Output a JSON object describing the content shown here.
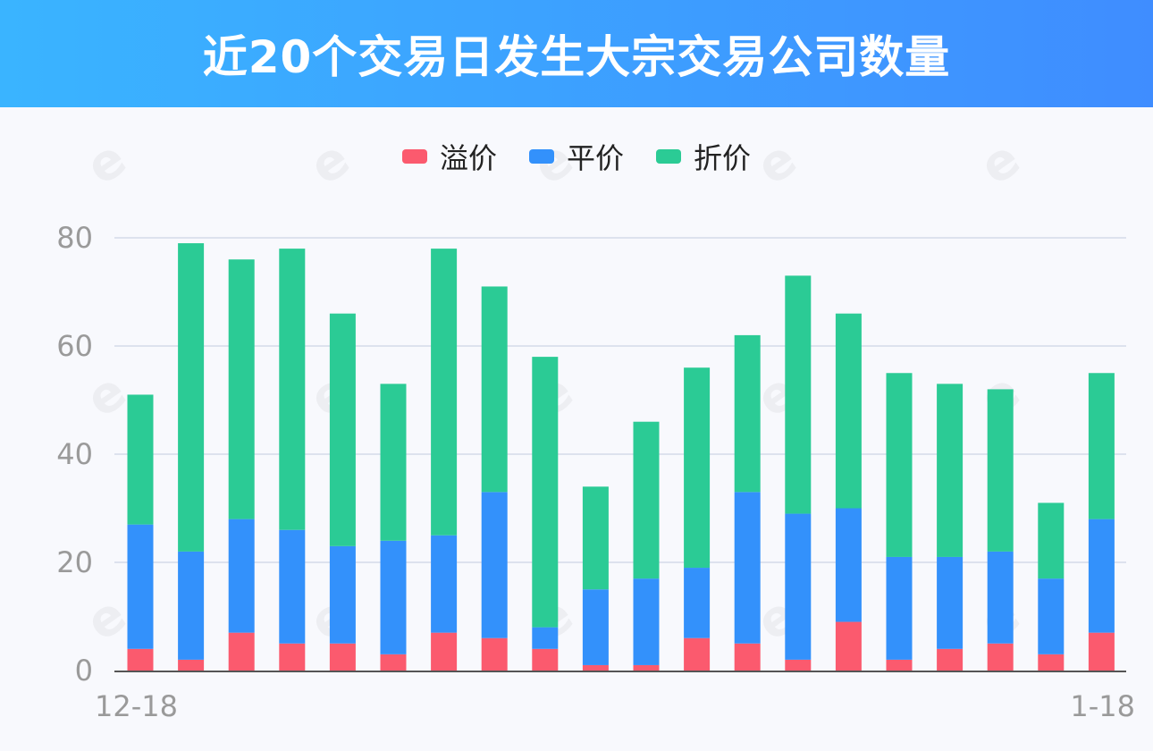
{
  "header": {
    "title": "近20个交易日发生大宗交易公司数量"
  },
  "colors": {
    "premium": "#fb5a6e",
    "par": "#3391fb",
    "discount": "#2bcb95",
    "grid": "#dde2ee",
    "axis": "#555555"
  },
  "chart_data": {
    "type": "bar",
    "stacked": true,
    "title": "近20个交易日发生大宗交易公司数量",
    "legend_position": "top-center",
    "grid": true,
    "ylim": [
      0,
      80
    ],
    "y_ticks": [
      "0",
      "20",
      "40",
      "60",
      "80"
    ],
    "x_tick_labels": [
      "12-18",
      "1-18"
    ],
    "series": [
      {
        "name": "溢价",
        "values": [
          4,
          2,
          7,
          5,
          5,
          3,
          7,
          6,
          4,
          1,
          1,
          6,
          5,
          2,
          9,
          2,
          4,
          5,
          3,
          7
        ]
      },
      {
        "name": "平价",
        "values": [
          23,
          20,
          21,
          21,
          18,
          21,
          18,
          27,
          4,
          14,
          16,
          13,
          28,
          27,
          21,
          19,
          17,
          17,
          14,
          21
        ]
      },
      {
        "name": "折价",
        "values": [
          24,
          57,
          48,
          52,
          43,
          29,
          53,
          38,
          50,
          19,
          29,
          37,
          29,
          44,
          36,
          34,
          32,
          30,
          14,
          27
        ]
      }
    ]
  }
}
